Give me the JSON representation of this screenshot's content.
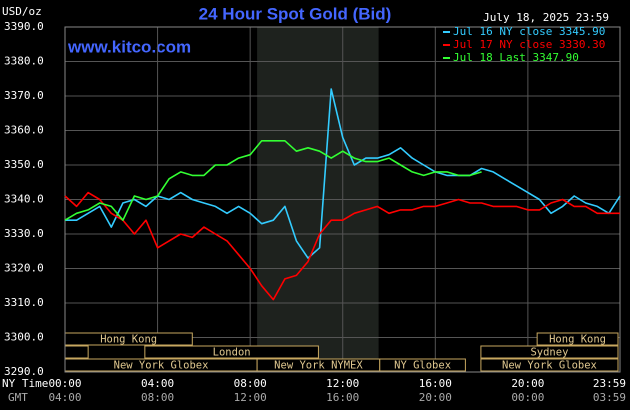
{
  "chart_data": {
    "type": "line",
    "title": "24 Hour Spot Gold (Bid)",
    "unit_label": "USD/oz",
    "watermark": "www.kitco.com",
    "timestamp": "July 18, 2025 23:59",
    "x_label_local": "NY Time",
    "x_label_gmt": "GMT",
    "xlim": [
      0,
      23.98
    ],
    "ylim": [
      3290,
      3390
    ],
    "grid": true,
    "legend": "top-right",
    "shaded_x": [
      8.3,
      13.55
    ],
    "xticks": [
      {
        "value": 0,
        "label": "00:00"
      },
      {
        "value": 4,
        "label": "04:00"
      },
      {
        "value": 8,
        "label": "08:00"
      },
      {
        "value": 12,
        "label": "12:00"
      },
      {
        "value": 16,
        "label": "16:00"
      },
      {
        "value": 20,
        "label": "20:00"
      },
      {
        "value": 23.98,
        "label": "23:59"
      }
    ],
    "gmt_ticks": [
      {
        "value": 0,
        "label": "04:00"
      },
      {
        "value": 4,
        "label": "08:00"
      },
      {
        "value": 8,
        "label": "12:00"
      },
      {
        "value": 12,
        "label": "16:00"
      },
      {
        "value": 16,
        "label": "20:00"
      },
      {
        "value": 20,
        "label": "00:00"
      },
      {
        "value": 23.98,
        "label": "03:59"
      }
    ],
    "yticks": [
      {
        "value": 3290,
        "label": "3290.0"
      },
      {
        "value": 3300,
        "label": "3300.0"
      },
      {
        "value": 3310,
        "label": "3310.0"
      },
      {
        "value": 3320,
        "label": "3320.0"
      },
      {
        "value": 3330,
        "label": "3330.0"
      },
      {
        "value": 3340,
        "label": "3340.0"
      },
      {
        "value": 3350,
        "label": "3350.0"
      },
      {
        "value": 3360,
        "label": "3360.0"
      },
      {
        "value": 3370,
        "label": "3370.0"
      },
      {
        "value": 3380,
        "label": "3380.0"
      },
      {
        "value": 3390,
        "label": "3390.0"
      }
    ],
    "session_rows": [
      [
        {
          "label": "Hong Kong",
          "start": 0,
          "end": 5.5
        },
        {
          "label": "Hong Kong",
          "start": 20.4,
          "end": 24
        }
      ],
      [
        {
          "label": null,
          "start": 0,
          "end": 1.0
        },
        {
          "label": "London",
          "start": 3.45,
          "end": 10.95
        },
        {
          "label": "Sydney",
          "start": 17.97,
          "end": 24
        }
      ],
      [
        {
          "label": "New York Globex",
          "start": 0,
          "end": 8.3
        },
        {
          "label": "New York NYMEX",
          "start": 8.3,
          "end": 13.6
        },
        {
          "label": "NY Globex",
          "start": 13.6,
          "end": 17.3
        },
        {
          "label": "New York Globex",
          "start": 17.97,
          "end": 24
        }
      ]
    ],
    "x": [
      0,
      0.5,
      1,
      1.5,
      2,
      2.5,
      3,
      3.5,
      4,
      4.5,
      5,
      5.5,
      6,
      6.5,
      7,
      7.5,
      8,
      8.5,
      9,
      9.5,
      10,
      10.5,
      11,
      11.5,
      12,
      12.5,
      13,
      13.5,
      14,
      14.5,
      15,
      15.5,
      16,
      16.5,
      17,
      17.5,
      18,
      18.5,
      19,
      19.5,
      20,
      20.5,
      21,
      21.5,
      22,
      22.5,
      23,
      23.5,
      23.98
    ],
    "series": [
      {
        "name": "Jul 16 NY close 3345.90",
        "color": "#33ccff",
        "values": [
          3334,
          3334,
          3336,
          3338,
          3332,
          3339,
          3340,
          3338,
          3341,
          3340,
          3342,
          3340,
          3339,
          3338,
          3336,
          3338,
          3336,
          3333,
          3334,
          3338,
          3328,
          3323,
          3326,
          3372,
          3358,
          3350,
          3352,
          3352,
          3353,
          3355,
          3352,
          3350,
          3348,
          3347,
          3347,
          3347,
          3349,
          3348,
          3346,
          3344,
          3342,
          3340,
          3336,
          3338,
          3341,
          3339,
          3338,
          3336,
          3341
        ]
      },
      {
        "name": "Jul 17 NY close 3330.30",
        "color": "#ff0000",
        "values": [
          3341,
          3338,
          3342,
          3340,
          3336,
          3334,
          3330,
          3334,
          3326,
          3328,
          3330,
          3329,
          3332,
          3330,
          3328,
          3324,
          3320,
          3315,
          3311,
          3317,
          3318,
          3322,
          3330,
          3334,
          3334,
          3336,
          3337,
          3338,
          3336,
          3337,
          3337,
          3338,
          3338,
          3339,
          3340,
          3339,
          3339,
          3338,
          3338,
          3338,
          3337,
          3337,
          3339,
          3340,
          3338,
          3338,
          3336,
          3336,
          3336
        ]
      },
      {
        "name": "Jul 18 Last 3347.90",
        "color": "#33ff33",
        "values": [
          3334,
          3336,
          3337,
          3339,
          3338,
          3334,
          3341,
          3340,
          3341,
          3346,
          3348,
          3347,
          3347,
          3350,
          3350,
          3352,
          3353,
          3357,
          3357,
          3357,
          3354,
          3355,
          3354,
          3352,
          3354,
          3352,
          3351,
          3351,
          3352,
          3350,
          3348,
          3347,
          3348,
          3348,
          3347,
          3347,
          3348,
          null,
          null,
          null,
          null,
          null,
          null,
          null,
          null,
          null,
          null,
          null,
          null
        ]
      }
    ]
  }
}
